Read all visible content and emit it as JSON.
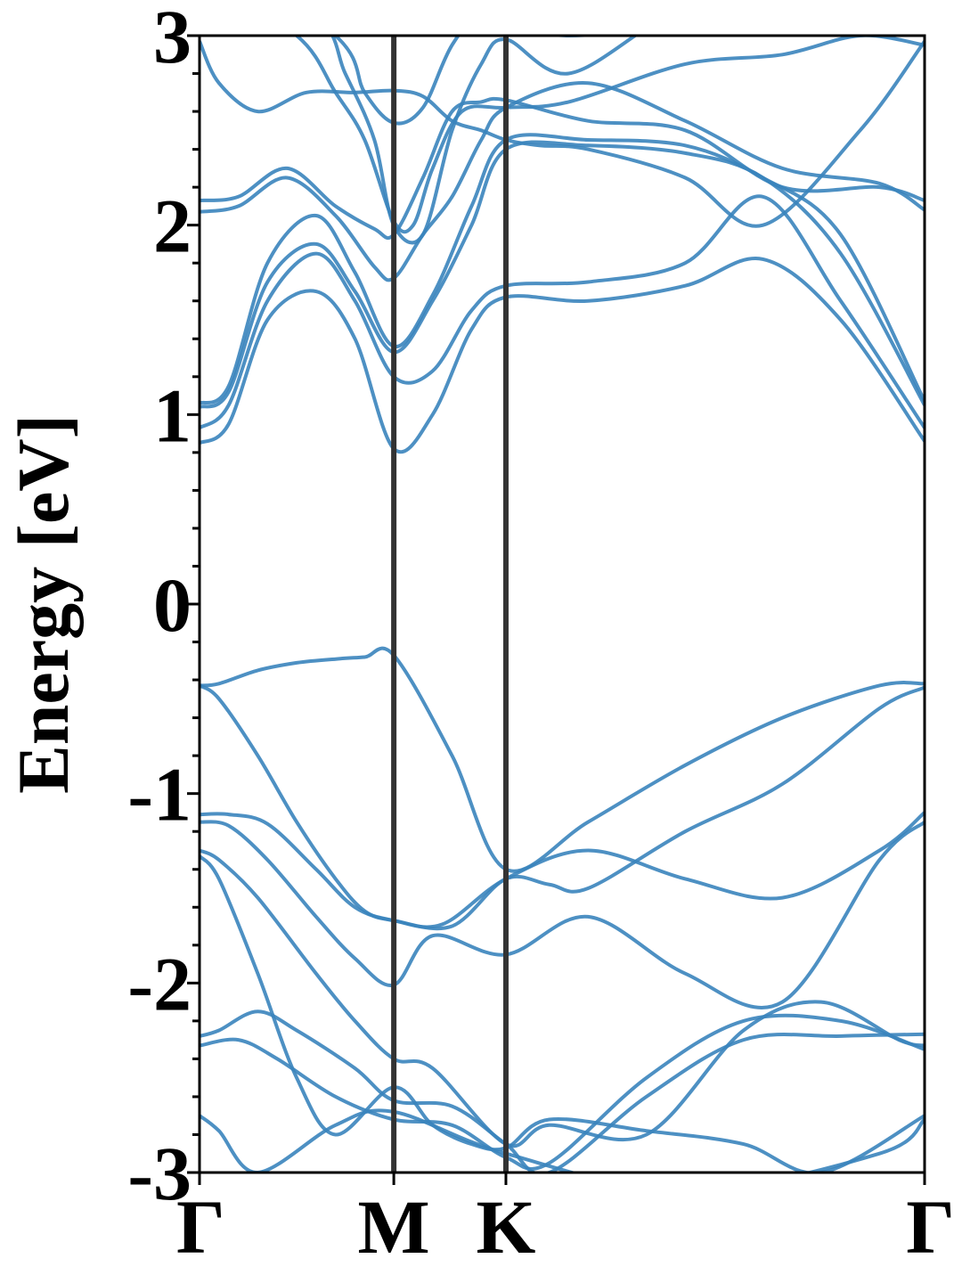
{
  "chart_data": {
    "type": "line",
    "title": "",
    "xlabel": "",
    "ylabel": "Energy [eV]",
    "ylim": [
      -3,
      3
    ],
    "y_ticks": [
      "-3",
      "-2",
      "-1",
      "0",
      "1",
      "2",
      "3"
    ],
    "k_path": {
      "labels": [
        "Γ",
        "M",
        "K",
        "Γ"
      ],
      "positions": [
        0,
        1,
        1.577,
        3.732
      ]
    },
    "line_color": "#3a84bd",
    "divider_color": "#333333",
    "grid": false,
    "series": [
      {
        "x": [
          0,
          0.1,
          0.3,
          0.5,
          0.7,
          0.85,
          1.0,
          1.3,
          1.577,
          2.0,
          2.5,
          3.0,
          3.5,
          3.732
        ],
        "values": [
          -0.43,
          -0.42,
          -0.35,
          -0.31,
          -0.29,
          -0.28,
          -0.27,
          -0.8,
          -1.4,
          -1.15,
          -0.85,
          -0.6,
          -0.43,
          -0.42
        ]
      },
      {
        "x": [
          0,
          0.1,
          0.3,
          0.5,
          0.7,
          0.85,
          1.0,
          1.3,
          1.577,
          1.8,
          2.0,
          2.5,
          3.0,
          3.5,
          3.732
        ],
        "values": [
          -0.43,
          -0.5,
          -0.8,
          -1.15,
          -1.45,
          -1.62,
          -1.67,
          -1.7,
          -1.45,
          -1.48,
          -1.5,
          -1.2,
          -0.95,
          -0.55,
          -0.44
        ]
      },
      {
        "x": [
          0,
          0.15,
          0.35,
          0.6,
          0.8,
          1.0,
          1.25,
          1.577,
          2.0,
          2.5,
          3.0,
          3.5,
          3.732
        ],
        "values": [
          -1.11,
          -1.11,
          -1.16,
          -1.4,
          -1.6,
          -1.67,
          -1.69,
          -1.45,
          -1.3,
          -1.45,
          -1.55,
          -1.3,
          -1.1
        ]
      },
      {
        "x": [
          0,
          0.15,
          0.35,
          0.6,
          0.8,
          1.0,
          1.2,
          1.577,
          2.0,
          2.5,
          3.0,
          3.5,
          3.732
        ],
        "values": [
          -1.15,
          -1.17,
          -1.35,
          -1.65,
          -1.87,
          -2.01,
          -1.75,
          -1.85,
          -1.65,
          -1.95,
          -2.1,
          -1.35,
          -1.15
        ]
      },
      {
        "x": [
          0,
          0.1,
          0.3,
          0.6,
          0.8,
          1.0,
          1.2,
          1.577,
          1.8,
          2.3,
          2.8,
          3.2,
          3.6,
          3.732
        ],
        "values": [
          -1.3,
          -1.35,
          -1.55,
          -1.95,
          -2.2,
          -2.4,
          -2.45,
          -2.85,
          -2.75,
          -2.8,
          -2.25,
          -2.1,
          -2.3,
          -2.33
        ]
      },
      {
        "x": [
          0,
          0.1,
          0.3,
          0.5,
          0.8,
          1.0,
          1.3,
          1.577,
          1.8,
          2.3,
          2.8,
          3.3,
          3.732
        ],
        "values": [
          -2.28,
          -2.25,
          -2.15,
          -2.25,
          -2.45,
          -2.62,
          -2.65,
          -2.85,
          -3.0,
          -2.6,
          -2.3,
          -2.28,
          -2.27
        ]
      },
      {
        "x": [
          0,
          0.2,
          0.4,
          0.7,
          1.0,
          1.3,
          1.577,
          1.8,
          2.3,
          2.8,
          3.3,
          3.732
        ],
        "values": [
          -2.33,
          -2.3,
          -2.4,
          -2.6,
          -2.72,
          -2.75,
          -2.92,
          -2.95,
          -2.5,
          -2.2,
          -2.2,
          -2.35
        ]
      },
      {
        "x": [
          0,
          0.1,
          0.3,
          0.5,
          0.7,
          1.0,
          1.2,
          1.4,
          1.577,
          1.8,
          2.3,
          2.8,
          3.2,
          3.732
        ],
        "values": [
          -1.33,
          -1.45,
          -1.95,
          -2.5,
          -2.8,
          -2.55,
          -2.75,
          -2.85,
          -2.87,
          -2.72,
          -2.78,
          -2.85,
          -3.0,
          -2.7
        ]
      },
      {
        "x": [
          0,
          0.1,
          0.3,
          0.7,
          1.0,
          1.577,
          2.5,
          3.5,
          3.732
        ],
        "values": [
          -2.7,
          -2.78,
          -3.0,
          -2.75,
          -2.68,
          -2.9,
          -3.1,
          -2.9,
          -2.72
        ]
      },
      {
        "x": [
          0,
          0.15,
          0.35,
          0.6,
          0.8,
          1.0,
          1.2,
          1.4,
          1.577,
          2.0,
          2.5,
          2.9,
          3.3,
          3.732
        ],
        "values": [
          0.85,
          0.95,
          1.5,
          1.65,
          1.4,
          0.82,
          1.0,
          1.45,
          1.62,
          1.6,
          1.68,
          1.82,
          1.5,
          0.86
        ]
      },
      {
        "x": [
          0,
          0.15,
          0.35,
          0.6,
          0.8,
          1.0,
          1.2,
          1.4,
          1.577,
          2.0,
          2.5,
          2.9,
          3.3,
          3.732
        ],
        "values": [
          0.93,
          1.05,
          1.6,
          1.85,
          1.6,
          1.2,
          1.23,
          1.55,
          1.68,
          1.7,
          1.8,
          2.15,
          1.6,
          0.93
        ]
      },
      {
        "x": [
          0,
          0.15,
          0.35,
          0.6,
          0.8,
          1.0,
          1.2,
          1.4,
          1.577,
          2.0,
          2.5,
          2.9,
          3.3,
          3.732
        ],
        "values": [
          1.04,
          1.12,
          1.7,
          1.9,
          1.65,
          1.33,
          1.6,
          2.0,
          2.4,
          2.42,
          2.38,
          2.25,
          1.85,
          1.05
        ]
      },
      {
        "x": [
          0,
          0.15,
          0.35,
          0.6,
          0.8,
          1.0,
          1.2,
          1.4,
          1.577,
          2.0,
          2.5,
          2.9,
          3.3,
          3.732
        ],
        "values": [
          1.06,
          1.15,
          1.8,
          2.05,
          1.75,
          1.36,
          1.63,
          2.1,
          2.45,
          2.45,
          2.42,
          2.25,
          1.95,
          1.07
        ]
      },
      {
        "x": [
          0,
          0.2,
          0.45,
          0.7,
          0.9,
          1.0,
          1.15,
          1.3,
          1.45,
          1.577,
          2.0,
          2.5,
          3.0,
          3.5,
          3.732
        ],
        "values": [
          2.07,
          2.1,
          2.25,
          2.05,
          1.78,
          1.72,
          1.95,
          2.15,
          2.45,
          2.62,
          2.75,
          2.55,
          2.3,
          2.22,
          2.08
        ]
      },
      {
        "x": [
          0,
          0.2,
          0.45,
          0.7,
          0.9,
          1.0,
          1.15,
          1.3,
          1.45,
          1.577,
          2.0,
          2.5,
          3.0,
          3.5,
          3.732
        ],
        "values": [
          2.13,
          2.15,
          2.3,
          2.1,
          1.98,
          1.95,
          2.25,
          2.6,
          2.65,
          2.66,
          2.55,
          2.5,
          2.2,
          2.2,
          2.13
        ]
      },
      {
        "x": [
          0,
          0.1,
          0.3,
          0.55,
          0.8,
          1.0,
          1.15,
          1.3,
          1.45,
          1.577,
          1.75,
          2.0,
          2.5,
          2.9,
          3.4,
          3.732
        ],
        "values": [
          2.97,
          2.75,
          2.6,
          2.7,
          2.7,
          2.71,
          2.68,
          2.55,
          2.5,
          2.45,
          2.42,
          2.4,
          2.25,
          2.0,
          2.5,
          2.97
        ]
      },
      {
        "x": [
          0,
          0.5,
          0.7,
          0.85,
          1.0,
          1.1,
          1.2,
          1.35,
          1.577,
          1.9,
          2.5,
          3.0,
          3.4,
          3.732
        ],
        "values": [
          3.3,
          3.0,
          2.7,
          2.45,
          2.02,
          2.0,
          2.3,
          2.6,
          2.62,
          2.65,
          2.85,
          2.9,
          3.0,
          2.95
        ]
      },
      {
        "x": [
          0,
          0.6,
          0.75,
          0.9,
          1.0,
          1.15,
          1.3,
          1.45,
          1.577,
          1.9,
          2.4,
          2.9,
          3.732
        ],
        "values": [
          3.4,
          3.1,
          2.8,
          2.45,
          2.0,
          1.95,
          2.5,
          2.85,
          2.98,
          2.8,
          3.1,
          3.3,
          3.5
        ]
      },
      {
        "x": [
          0,
          0.7,
          0.85,
          1.0,
          1.15,
          1.3,
          1.5,
          1.577,
          1.9,
          2.5,
          3.0,
          3.732
        ],
        "values": [
          3.5,
          3.0,
          2.7,
          2.54,
          2.62,
          2.95,
          3.2,
          3.1,
          3.0,
          3.1,
          3.4,
          3.5
        ]
      }
    ]
  }
}
